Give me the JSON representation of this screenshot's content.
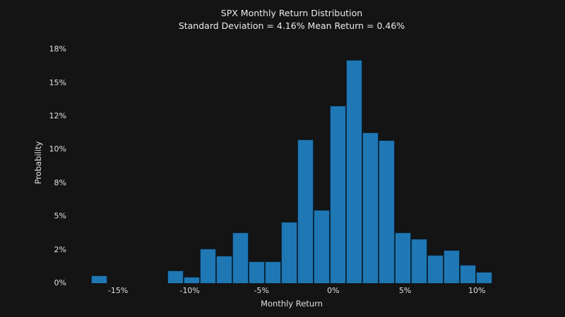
{
  "chart": {
    "title": "SPX Monthly Return Distribution",
    "subtitle": "Standard Deviation = 4.16% Mean Return = 0.46%",
    "xlabel": "Monthly Return",
    "ylabel": "Probability"
  },
  "chart_data": {
    "type": "bar",
    "subtype": "histogram",
    "title": "SPX Monthly Return Distribution",
    "subtitle": "Standard Deviation = 4.16% Mean Return = 0.46%",
    "xlabel": "Monthly Return",
    "ylabel": "Probability",
    "stats": {
      "std_dev_pct": 4.16,
      "mean_return_pct": 0.46
    },
    "bar_color": "#1f77b4",
    "bar_edge_color": "#0a0a0a",
    "background_color": "#141414",
    "text_color": "#e6e6e6",
    "grid": false,
    "legend": false,
    "bin_width_pct": 1.133,
    "xlim": [
      -18.3,
      12.5
    ],
    "ylim": [
      0,
      18.03
    ],
    "bins": [
      {
        "center": -16.3,
        "probability": 0.6
      },
      {
        "center": -11.01,
        "probability": 0.95
      },
      {
        "center": -9.88,
        "probability": 0.5
      },
      {
        "center": -8.74,
        "probability": 2.6
      },
      {
        "center": -7.61,
        "probability": 2.05
      },
      {
        "center": -6.48,
        "probability": 3.8
      },
      {
        "center": -5.34,
        "probability": 1.65
      },
      {
        "center": -4.21,
        "probability": 1.65
      },
      {
        "center": -3.08,
        "probability": 4.6
      },
      {
        "center": -1.95,
        "probability": 10.75
      },
      {
        "center": -0.81,
        "probability": 5.5
      },
      {
        "center": 0.32,
        "probability": 13.3
      },
      {
        "center": 1.45,
        "probability": 16.7
      },
      {
        "center": 2.59,
        "probability": 11.3
      },
      {
        "center": 3.72,
        "probability": 10.7
      },
      {
        "center": 4.85,
        "probability": 3.8
      },
      {
        "center": 5.99,
        "probability": 3.3
      },
      {
        "center": 7.12,
        "probability": 2.1
      },
      {
        "center": 8.25,
        "probability": 2.5
      },
      {
        "center": 9.38,
        "probability": 1.35
      },
      {
        "center": 10.52,
        "probability": 0.85
      }
    ],
    "x_ticks": [
      {
        "value": -15,
        "label": "-15%"
      },
      {
        "value": -10,
        "label": "-10%"
      },
      {
        "value": -5,
        "label": "-5%"
      },
      {
        "value": 0,
        "label": "0%"
      },
      {
        "value": 5,
        "label": "5%"
      },
      {
        "value": 10,
        "label": "10%"
      }
    ],
    "y_ticks": [
      {
        "value": 0,
        "label": "0%"
      },
      {
        "value": 2.5,
        "label": "2%"
      },
      {
        "value": 5,
        "label": "5%"
      },
      {
        "value": 7.5,
        "label": "8%"
      },
      {
        "value": 10,
        "label": "10%"
      },
      {
        "value": 12.5,
        "label": "12%"
      },
      {
        "value": 15,
        "label": "15%"
      },
      {
        "value": 17.5,
        "label": "18%"
      }
    ]
  }
}
